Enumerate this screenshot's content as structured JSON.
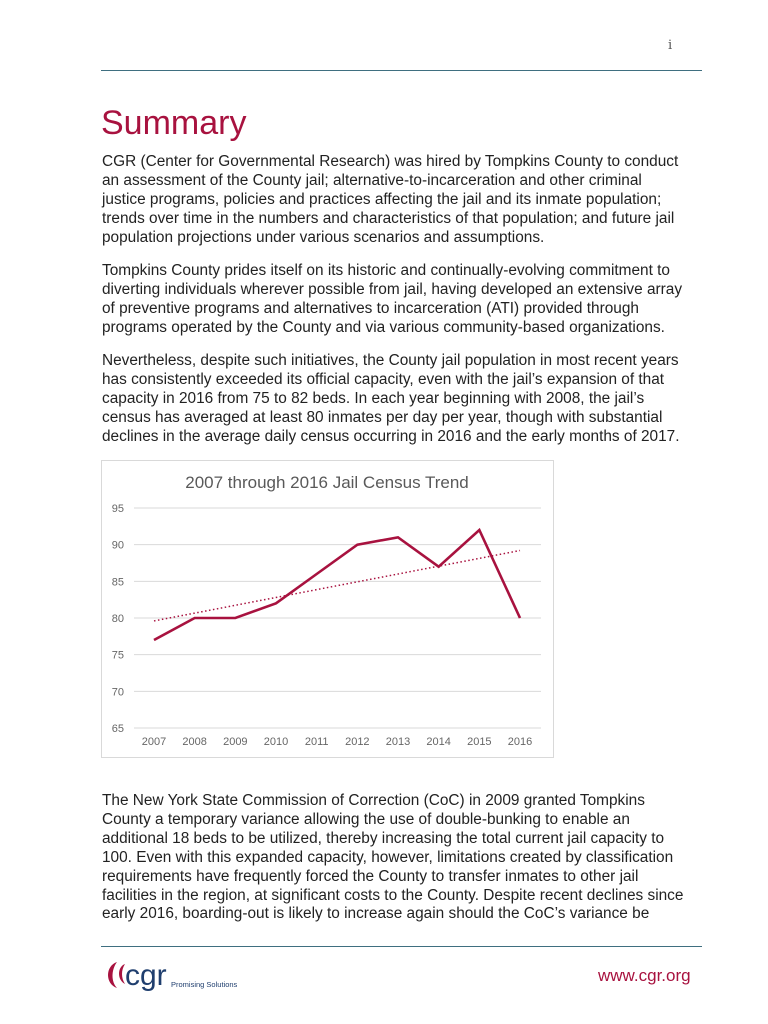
{
  "page_number": "i",
  "title": "Summary",
  "paragraphs": [
    [
      "CGR (Center for Governmental Research) was hired by Tompkins County to conduct",
      "an assessment of the County jail; alternative-to-incarceration and other criminal",
      "justice programs, policies and practices affecting the jail and its inmate population;",
      "trends over time in the numbers and characteristics of that population; and future jail",
      "population projections under various scenarios and assumptions."
    ],
    [
      "Tompkins County prides itself on its historic and continually-evolving commitment to",
      "diverting individuals wherever possible from jail, having developed an extensive array",
      "of preventive programs and alternatives to incarceration (ATI) provided through",
      "programs operated by the County and via various community-based organizations."
    ],
    [
      "Nevertheless, despite such initiatives, the County jail population in most recent years",
      "has consistently exceeded its official capacity, even with the jail’s expansion of that",
      "capacity in 2016 from 75 to 82 beds.  In each year beginning with 2008, the jail’s",
      "census has averaged at least 80 inmates per day per year, though with substantial",
      "declines in the average daily census occurring in 2016 and the early months of 2017."
    ],
    [
      "The New York State Commission of Correction (CoC) in 2009 granted Tompkins",
      "County a temporary variance allowing the use of double-bunking to enable an",
      "additional 18 beds to be utilized, thereby increasing the total current jail capacity to",
      "100.  Even with this expanded capacity, however, limitations created by classification",
      "requirements have frequently forced the County to transfer inmates to other jail",
      "facilities in the region, at significant costs to the County.  Despite recent declines since",
      "early 2016, boarding-out is likely to increase again should the CoC’s variance be"
    ]
  ],
  "chart_data": {
    "type": "line",
    "title": "2007 through 2016 Jail Census Trend",
    "categories": [
      "2007",
      "2008",
      "2009",
      "2010",
      "2011",
      "2012",
      "2013",
      "2014",
      "2015",
      "2016"
    ],
    "values": [
      77,
      80,
      80,
      82,
      86,
      90,
      91,
      87,
      92,
      80
    ],
    "trendline": {
      "type": "linear",
      "start": 79.6,
      "end": 89.2,
      "style": "dotted"
    },
    "ylim": [
      65,
      95
    ],
    "yticks": [
      65,
      70,
      75,
      80,
      85,
      90,
      95
    ],
    "grid": true,
    "legend": "none",
    "color": "#a8123f"
  },
  "footer": {
    "logo_text": "cgr",
    "tagline": "Promising Solutions",
    "url": "www.cgr.org"
  },
  "colors": {
    "accent": "#a8123f",
    "rule": "#3f6f80"
  }
}
